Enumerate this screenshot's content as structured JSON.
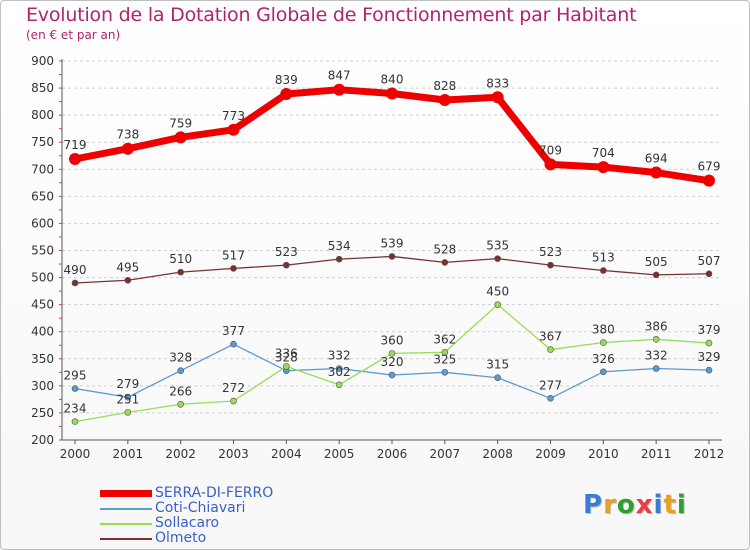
{
  "title": "Evolution de la Dotation Globale de Fonctionnement par Habitant",
  "subtitle": "(en € et par an)",
  "logo_text": "Proxiti",
  "chart_data": {
    "type": "line",
    "title": "Evolution de la Dotation Globale de Fonctionnement par Habitant",
    "subtitle": "(en € et par an)",
    "xlabel": "",
    "ylabel": "",
    "x": [
      "2000",
      "2001",
      "2002",
      "2003",
      "2004",
      "2005",
      "2006",
      "2007",
      "2008",
      "2009",
      "2010",
      "2011",
      "2012"
    ],
    "ylim": [
      200,
      900
    ],
    "yticks": [
      200,
      250,
      300,
      350,
      400,
      450,
      500,
      550,
      600,
      650,
      700,
      750,
      800,
      850,
      900
    ],
    "grid": "horizontal dashed",
    "legend": "bottom-left",
    "series": [
      {
        "name": "SERRA-DI-FERRO",
        "color": "#ee0000",
        "values": [
          719,
          738,
          759,
          773,
          839,
          847,
          840,
          828,
          833,
          709,
          704,
          694,
          679
        ]
      },
      {
        "name": "Coti-Chiavari",
        "color": "#5b9bd5",
        "values": [
          295,
          279,
          328,
          377,
          328,
          332,
          320,
          325,
          315,
          277,
          326,
          332,
          329
        ]
      },
      {
        "name": "Sollacaro",
        "color": "#99dd55",
        "values": [
          234,
          251,
          266,
          272,
          336,
          302,
          360,
          362,
          450,
          367,
          380,
          386,
          379
        ]
      },
      {
        "name": "Olmeto",
        "color": "#7a3030",
        "values": [
          490,
          495,
          510,
          517,
          523,
          534,
          539,
          528,
          535,
          523,
          513,
          505,
          507
        ]
      }
    ]
  }
}
